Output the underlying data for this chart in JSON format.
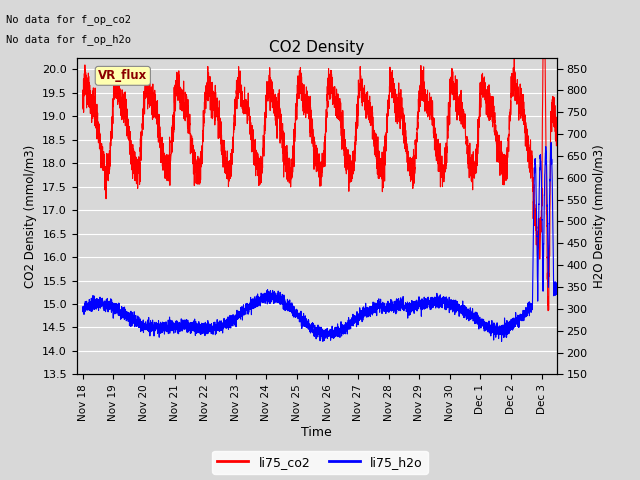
{
  "title": "CO2 Density",
  "xlabel": "Time",
  "ylabel_left": "CO2 Density (mmol/m3)",
  "ylabel_right": "H2O Density (mmol/m3)",
  "top_note_line1": "No data for f_op_co2",
  "top_note_line2": "No data for f_op_h2o",
  "vr_flux_label": "VR_flux",
  "ylim_left": [
    13.5,
    20.25
  ],
  "ylim_right": [
    150,
    875
  ],
  "yticks_left": [
    13.5,
    14.0,
    14.5,
    15.0,
    15.5,
    16.0,
    16.5,
    17.0,
    17.5,
    18.0,
    18.5,
    19.0,
    19.5,
    20.0
  ],
  "yticks_right": [
    150,
    200,
    250,
    300,
    350,
    400,
    450,
    500,
    550,
    600,
    650,
    700,
    750,
    800,
    850
  ],
  "fig_bg_color": "#d8d8d8",
  "plot_bg_color": "#d8d8d8",
  "legend_entries": [
    "li75_co2",
    "li75_h2o"
  ],
  "co2_color": "red",
  "h2o_color": "blue",
  "grid_color": "white",
  "xtick_labels": [
    "Nov 18",
    "Nov 19",
    "Nov 20",
    "Nov 21",
    "Nov 22",
    "Nov 23",
    "Nov 24",
    "Nov 25",
    "Nov 26",
    "Nov 27",
    "Nov 28",
    "Nov 29",
    "Nov 30",
    "Dec 1",
    "Dec 2",
    "Dec 3"
  ],
  "xlim": [
    -0.2,
    15.5
  ]
}
